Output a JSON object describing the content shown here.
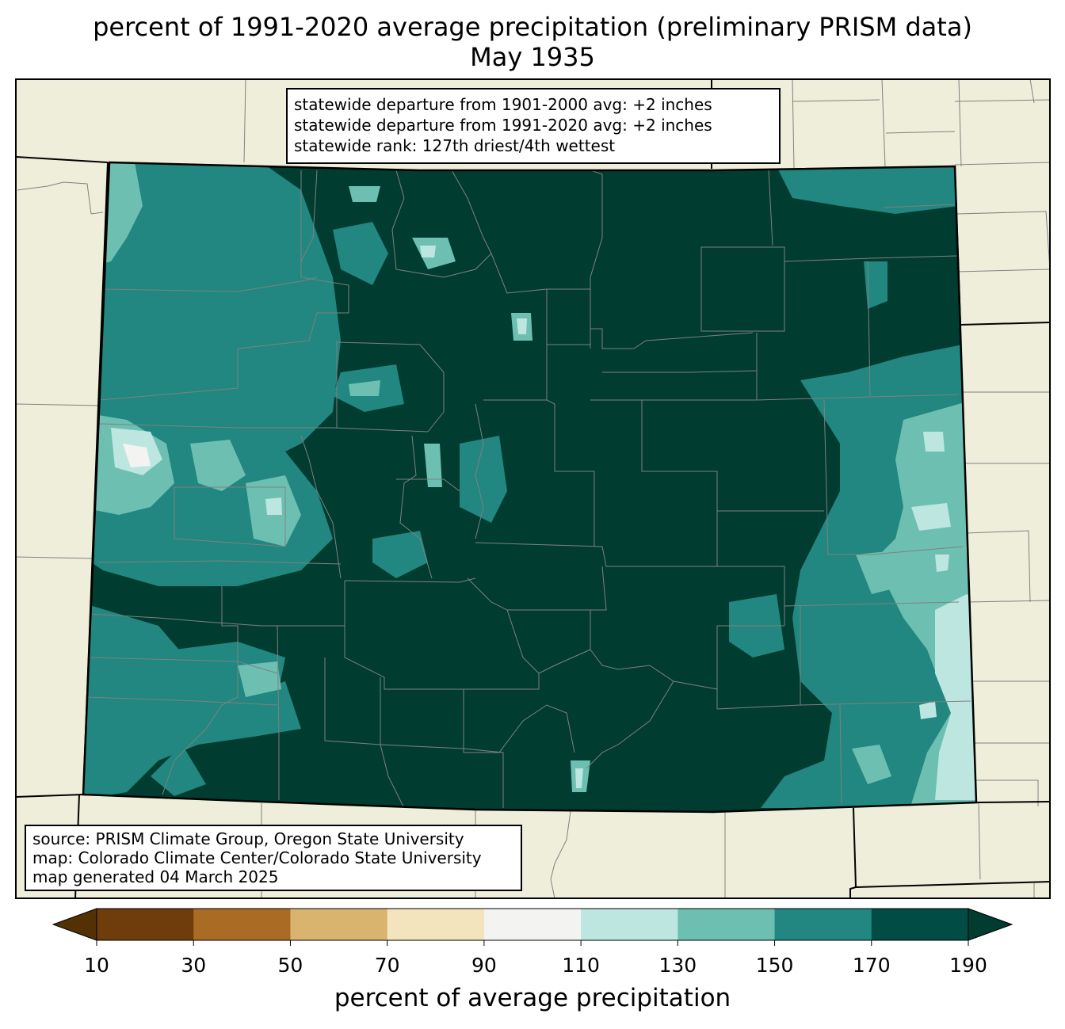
{
  "title": {
    "line1": "percent of 1991-2020 average precipitation (preliminary PRISM data)",
    "line2": "May 1935"
  },
  "stats_box": {
    "line1": "statewide departure from 1901-2000 avg: +2 inches",
    "line2": "statewide departure from 1991-2020 avg: +2 inches",
    "line3": "statewide rank: 127th driest/4th wettest"
  },
  "source_box": {
    "line1": "source: PRISM Climate Group, Oregon State University",
    "line2": "map: Colorado Climate Center/Colorado State University",
    "line3": "map generated 04 March 2025"
  },
  "colorbar": {
    "label": "percent of average precipitation",
    "ticks": [
      "10",
      "30",
      "50",
      "70",
      "90",
      "110",
      "130",
      "150",
      "170",
      "190"
    ],
    "under_color": "#543005",
    "over_color": "#003c30",
    "bins": [
      {
        "range": "10-30",
        "color": "#6f3d0c"
      },
      {
        "range": "30-50",
        "color": "#aa6c24"
      },
      {
        "range": "50-70",
        "color": "#d8b46e"
      },
      {
        "range": "70-90",
        "color": "#f3e4bd"
      },
      {
        "range": "90-110",
        "color": "#f3f4f2"
      },
      {
        "range": "110-130",
        "color": "#bde6e0"
      },
      {
        "range": "130-150",
        "color": "#6dbfb1"
      },
      {
        "range": "150-170",
        "color": "#218780"
      },
      {
        "range": "170-190",
        "color": "#014c44"
      }
    ]
  },
  "colors": {
    "land": "#efeedb",
    "county_lines": "#808080",
    "state_border": "#000000",
    "dominant_fill": "#003c30"
  }
}
